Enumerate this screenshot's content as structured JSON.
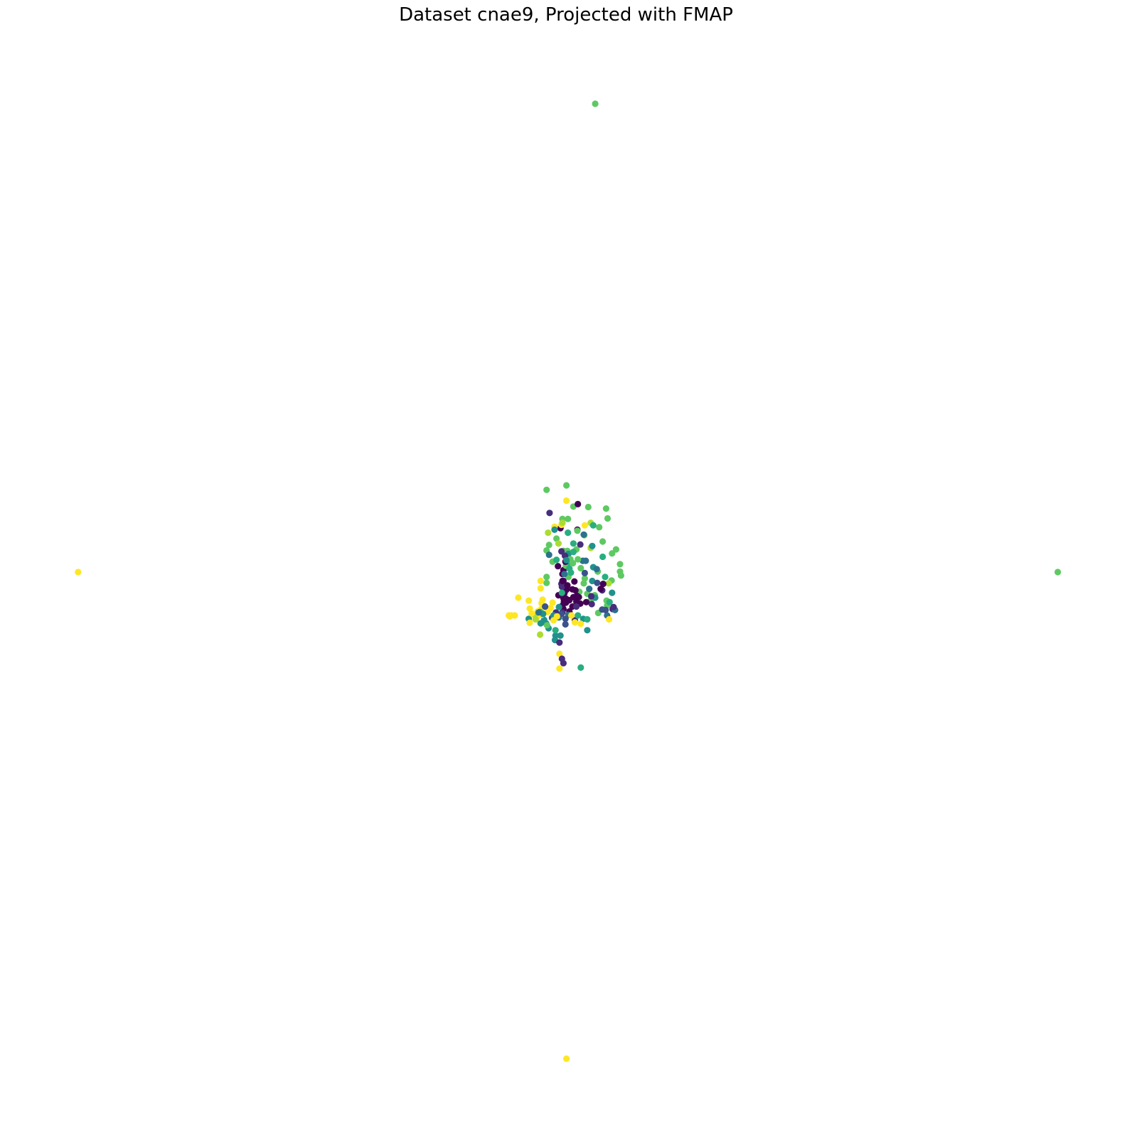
{
  "chart_data": {
    "type": "scatter",
    "title": "Dataset cnae9, Projected with FMAP",
    "xlabel": "",
    "ylabel": "",
    "axes_visible": false,
    "grid": false,
    "legend": "none",
    "xlim": [
      -1.0,
      1.0
    ],
    "ylim": [
      -1.0,
      1.0
    ],
    "colormap": "viridis",
    "class_colors": {
      "0": "#440154",
      "1": "#472d7b",
      "2": "#3b528b",
      "3": "#2c728e",
      "4": "#21918c",
      "5": "#28ae80",
      "6": "#5ec962",
      "7": "#addc30",
      "8": "#fde725"
    },
    "points": [
      {
        "x": 0.056,
        "y": 0.951,
        "c": 6
      },
      {
        "x": -0.986,
        "y": 0.0,
        "c": 8
      },
      {
        "x": 0.988,
        "y": 0.0,
        "c": 6
      },
      {
        "x": -0.002,
        "y": -0.988,
        "c": 8
      },
      {
        "x": -0.042,
        "y": 0.167,
        "c": 6
      },
      {
        "x": -0.002,
        "y": 0.176,
        "c": 6
      },
      {
        "x": 0.078,
        "y": 0.129,
        "c": 6
      },
      {
        "x": 0.081,
        "y": 0.109,
        "c": 6
      },
      {
        "x": 0.071,
        "y": 0.062,
        "c": 6
      },
      {
        "x": 0.09,
        "y": 0.038,
        "c": 6
      },
      {
        "x": 0.106,
        "y": 0.016,
        "c": 6
      },
      {
        "x": 0.106,
        "y": 0.001,
        "c": 6
      },
      {
        "x": 0.108,
        "y": -0.007,
        "c": 6
      },
      {
        "x": 0.089,
        "y": -0.017,
        "c": 6
      },
      {
        "x": 0.034,
        "y": 0.075,
        "c": 6
      },
      {
        "x": 0.018,
        "y": 0.046,
        "c": 6
      },
      {
        "x": -0.008,
        "y": 0.043,
        "c": 6
      },
      {
        "x": 0.0,
        "y": 0.043,
        "c": 6
      },
      {
        "x": -0.042,
        "y": 0.044,
        "c": 6
      },
      {
        "x": -0.042,
        "y": -0.01,
        "c": 6
      },
      {
        "x": -0.042,
        "y": -0.022,
        "c": 6
      },
      {
        "x": 0.002,
        "y": -0.01,
        "c": 6
      },
      {
        "x": 0.035,
        "y": -0.013,
        "c": 6
      },
      {
        "x": 0.033,
        "y": -0.023,
        "c": 6
      },
      {
        "x": 0.04,
        "y": -0.044,
        "c": 6
      },
      {
        "x": 0.024,
        "y": -0.04,
        "c": 6
      },
      {
        "x": 0.055,
        "y": -0.047,
        "c": 6
      },
      {
        "x": 0.047,
        "y": -0.057,
        "c": 6
      },
      {
        "x": 0.079,
        "y": -0.058,
        "c": 6
      },
      {
        "x": 0.062,
        "y": -0.083,
        "c": 6
      },
      {
        "x": 0.08,
        "y": -0.068,
        "c": 6
      },
      {
        "x": 0.085,
        "y": -0.061,
        "c": 5
      },
      {
        "x": 0.09,
        "y": -0.042,
        "c": 4
      },
      {
        "x": 0.044,
        "y": -0.034,
        "c": 3
      },
      {
        "x": 0.05,
        "y": -0.018,
        "c": 4
      },
      {
        "x": 0.031,
        "y": 0.023,
        "c": 3
      },
      {
        "x": 0.037,
        "y": 0.023,
        "c": 3
      },
      {
        "x": 0.035,
        "y": -0.002,
        "c": 2
      },
      {
        "x": 0.056,
        "y": -0.052,
        "c": 4
      },
      {
        "x": 0.032,
        "y": -0.095,
        "c": 4
      },
      {
        "x": 0.04,
        "y": -0.118,
        "c": 4
      },
      {
        "x": 0.08,
        "y": -0.088,
        "c": 3
      },
      {
        "x": 0.077,
        "y": -0.077,
        "c": 2
      },
      {
        "x": 0.091,
        "y": -0.075,
        "c": 1
      },
      {
        "x": 0.07,
        "y": -0.076,
        "c": 2
      },
      {
        "x": 0.049,
        "y": -0.065,
        "c": 1
      },
      {
        "x": 0.048,
        "y": -0.049,
        "c": 1
      },
      {
        "x": 0.023,
        "y": -0.051,
        "c": 0
      },
      {
        "x": 0.026,
        "y": -0.064,
        "c": 0
      },
      {
        "x": 0.018,
        "y": -0.06,
        "c": 0
      },
      {
        "x": 0.038,
        "y": -0.061,
        "c": 0
      },
      {
        "x": 0.01,
        "y": -0.07,
        "c": 0
      },
      {
        "x": -0.008,
        "y": -0.075,
        "c": 0
      },
      {
        "x": 0.004,
        "y": -0.08,
        "c": 0
      },
      {
        "x": -0.003,
        "y": -0.062,
        "c": 0
      },
      {
        "x": -0.008,
        "y": -0.053,
        "c": 0
      },
      {
        "x": -0.006,
        "y": -0.043,
        "c": 0
      },
      {
        "x": -0.002,
        "y": -0.036,
        "c": 0
      },
      {
        "x": -0.008,
        "y": -0.018,
        "c": 0
      },
      {
        "x": -0.01,
        "y": -0.004,
        "c": 0
      },
      {
        "x": -0.008,
        "y": 0.004,
        "c": 0
      },
      {
        "x": -0.007,
        "y": -0.06,
        "c": 0
      },
      {
        "x": -0.011,
        "y": -0.047,
        "c": 0
      },
      {
        "x": -0.01,
        "y": -0.068,
        "c": 0
      },
      {
        "x": 0.016,
        "y": -0.037,
        "c": 0
      },
      {
        "x": 0.019,
        "y": -0.048,
        "c": 0
      },
      {
        "x": 0.012,
        "y": -0.051,
        "c": 0
      },
      {
        "x": 0.004,
        "y": -0.057,
        "c": 0
      },
      {
        "x": -0.003,
        "y": -0.054,
        "c": 0
      },
      {
        "x": -0.018,
        "y": -0.047,
        "c": 0
      },
      {
        "x": 0.02,
        "y": 0.086,
        "c": 0
      },
      {
        "x": 0.014,
        "y": -0.019,
        "c": 0
      },
      {
        "x": -0.014,
        "y": 0.089,
        "c": 0
      },
      {
        "x": -0.012,
        "y": 0.042,
        "c": 1
      },
      {
        "x": -0.012,
        "y": -0.024,
        "c": 1
      },
      {
        "x": -0.023,
        "y": -0.082,
        "c": 1
      },
      {
        "x": 0.07,
        "y": -0.037,
        "c": 1
      },
      {
        "x": -0.031,
        "y": -0.093,
        "c": 2
      },
      {
        "x": -0.004,
        "y": -0.106,
        "c": 2
      },
      {
        "x": 0.015,
        "y": -0.098,
        "c": 1
      },
      {
        "x": -0.01,
        "y": -0.082,
        "c": 1
      },
      {
        "x": -0.017,
        "y": -0.092,
        "c": 3
      },
      {
        "x": 0.002,
        "y": -0.087,
        "c": 3
      },
      {
        "x": -0.017,
        "y": -0.071,
        "c": 4
      },
      {
        "x": -0.028,
        "y": -0.088,
        "c": 4
      },
      {
        "x": -0.047,
        "y": -0.097,
        "c": 4
      },
      {
        "x": -0.043,
        "y": -0.104,
        "c": 4
      },
      {
        "x": -0.054,
        "y": -0.104,
        "c": 4
      },
      {
        "x": -0.038,
        "y": -0.114,
        "c": 4
      },
      {
        "x": -0.024,
        "y": -0.129,
        "c": 4
      },
      {
        "x": -0.025,
        "y": -0.138,
        "c": 4
      },
      {
        "x": -0.014,
        "y": -0.129,
        "c": 4
      },
      {
        "x": -0.078,
        "y": -0.095,
        "c": 4
      },
      {
        "x": 0.04,
        "y": -0.096,
        "c": 5
      },
      {
        "x": 0.021,
        "y": -0.088,
        "c": 5
      },
      {
        "x": -0.024,
        "y": -0.118,
        "c": 5
      },
      {
        "x": 0.007,
        "y": -0.001,
        "c": 5
      },
      {
        "x": -0.003,
        "y": 0.013,
        "c": 6
      },
      {
        "x": -0.03,
        "y": 0.021,
        "c": 6
      },
      {
        "x": 0.012,
        "y": 0.058,
        "c": 5
      },
      {
        "x": -0.019,
        "y": 0.012,
        "c": 0
      },
      {
        "x": 0.002,
        "y": 0.037,
        "c": 4
      },
      {
        "x": -0.006,
        "y": -0.004,
        "c": 3
      },
      {
        "x": -0.011,
        "y": -0.03,
        "c": 1
      },
      {
        "x": -0.012,
        "y": -0.085,
        "c": 2
      },
      {
        "x": -0.011,
        "y": -0.042,
        "c": 5
      },
      {
        "x": 0.027,
        "y": 0.008,
        "c": 6
      },
      {
        "x": 0.052,
        "y": 0.01,
        "c": 4
      },
      {
        "x": 0.061,
        "y": 0.001,
        "c": 6
      },
      {
        "x": 0.076,
        "y": -0.01,
        "c": 5
      },
      {
        "x": 0.059,
        "y": 0.006,
        "c": 3
      },
      {
        "x": 0.06,
        "y": -0.022,
        "c": 2
      },
      {
        "x": 0.004,
        "y": 0.02,
        "c": 5
      },
      {
        "x": 0.006,
        "y": 0.026,
        "c": 6
      },
      {
        "x": 0.004,
        "y": 0.007,
        "c": 5
      },
      {
        "x": 0.011,
        "y": 0.018,
        "c": 6
      },
      {
        "x": 0.098,
        "y": 0.046,
        "c": 6
      },
      {
        "x": 0.064,
        "y": 0.091,
        "c": 6
      },
      {
        "x": 0.047,
        "y": 0.1,
        "c": 7
      },
      {
        "x": 0.083,
        "y": -0.023,
        "c": 7
      },
      {
        "x": 0.047,
        "y": 0.049,
        "c": 7
      },
      {
        "x": 0.02,
        "y": 0.084,
        "c": 6
      },
      {
        "x": 0.042,
        "y": 0.132,
        "c": 6
      },
      {
        "x": 0.012,
        "y": 0.133,
        "c": 6
      },
      {
        "x": -0.01,
        "y": 0.108,
        "c": 6
      },
      {
        "x": 0.001,
        "y": 0.108,
        "c": 6
      },
      {
        "x": -0.039,
        "y": 0.08,
        "c": 7
      },
      {
        "x": -0.026,
        "y": 0.092,
        "c": 8
      },
      {
        "x": 0.001,
        "y": 0.08,
        "c": 5
      },
      {
        "x": -0.022,
        "y": 0.068,
        "c": 6
      },
      {
        "x": -0.018,
        "y": 0.058,
        "c": 7
      },
      {
        "x": -0.002,
        "y": 0.145,
        "c": 8
      },
      {
        "x": 0.021,
        "y": 0.138,
        "c": 0
      },
      {
        "x": 0.021,
        "y": 0.026,
        "c": 6
      },
      {
        "x": 0.012,
        "y": 0.041,
        "c": 5
      },
      {
        "x": 0.035,
        "y": 0.095,
        "c": 8
      },
      {
        "x": -0.036,
        "y": 0.12,
        "c": 1
      },
      {
        "x": -0.012,
        "y": 0.096,
        "c": 8
      },
      {
        "x": -0.01,
        "y": 0.1,
        "c": 7
      },
      {
        "x": 0.033,
        "y": 0.076,
        "c": 3
      },
      {
        "x": 0.052,
        "y": 0.095,
        "c": 5
      },
      {
        "x": 0.05,
        "y": 0.053,
        "c": 4
      },
      {
        "x": 0.071,
        "y": 0.031,
        "c": 5
      },
      {
        "x": 0.026,
        "y": 0.056,
        "c": 1
      },
      {
        "x": -0.026,
        "y": 0.086,
        "c": 4
      },
      {
        "x": -0.004,
        "y": 0.021,
        "c": 0
      },
      {
        "x": -0.005,
        "y": 0.033,
        "c": 1
      },
      {
        "x": -0.002,
        "y": 0.024,
        "c": 4
      },
      {
        "x": -0.054,
        "y": -0.018,
        "c": 8
      },
      {
        "x": -0.054,
        "y": -0.033,
        "c": 8
      },
      {
        "x": -0.062,
        "y": -0.093,
        "c": 8
      },
      {
        "x": -0.066,
        "y": -0.087,
        "c": 7
      },
      {
        "x": -0.06,
        "y": -0.08,
        "c": 8
      },
      {
        "x": -0.03,
        "y": -0.062,
        "c": 8
      },
      {
        "x": -0.052,
        "y": -0.087,
        "c": 8
      },
      {
        "x": -0.052,
        "y": -0.063,
        "c": 8
      },
      {
        "x": -0.05,
        "y": -0.056,
        "c": 8
      },
      {
        "x": -0.04,
        "y": -0.081,
        "c": 8
      },
      {
        "x": -0.034,
        "y": -0.073,
        "c": 8
      },
      {
        "x": -0.028,
        "y": -0.098,
        "c": 8
      },
      {
        "x": -0.053,
        "y": -0.075,
        "c": 8
      },
      {
        "x": -0.099,
        "y": -0.052,
        "c": 8
      },
      {
        "x": -0.118,
        "y": -0.088,
        "c": 8
      },
      {
        "x": -0.116,
        "y": -0.09,
        "c": 8
      },
      {
        "x": -0.113,
        "y": -0.088,
        "c": 8
      },
      {
        "x": -0.106,
        "y": -0.088,
        "c": 8
      },
      {
        "x": -0.078,
        "y": -0.058,
        "c": 8
      },
      {
        "x": -0.076,
        "y": -0.074,
        "c": 8
      },
      {
        "x": -0.072,
        "y": -0.084,
        "c": 8
      },
      {
        "x": -0.076,
        "y": -0.103,
        "c": 8
      },
      {
        "x": -0.021,
        "y": -0.09,
        "c": 8
      },
      {
        "x": 0.008,
        "y": -0.088,
        "c": 8
      },
      {
        "x": 0.015,
        "y": -0.102,
        "c": 8
      },
      {
        "x": 0.027,
        "y": -0.105,
        "c": 8
      },
      {
        "x": 0.084,
        "y": -0.096,
        "c": 8
      },
      {
        "x": -0.016,
        "y": -0.166,
        "c": 8
      },
      {
        "x": -0.016,
        "y": -0.196,
        "c": 8
      },
      {
        "x": -0.008,
        "y": -0.185,
        "c": 1
      },
      {
        "x": -0.011,
        "y": -0.176,
        "c": 1
      },
      {
        "x": -0.016,
        "y": -0.143,
        "c": 1
      },
      {
        "x": 0.027,
        "y": -0.194,
        "c": 5
      },
      {
        "x": -0.055,
        "y": -0.081,
        "c": 5
      },
      {
        "x": -0.049,
        "y": -0.085,
        "c": 4
      },
      {
        "x": -0.045,
        "y": -0.07,
        "c": 2
      },
      {
        "x": -0.058,
        "y": -0.082,
        "c": 3
      },
      {
        "x": -0.064,
        "y": -0.096,
        "c": 7
      },
      {
        "x": -0.041,
        "y": -0.108,
        "c": 6
      },
      {
        "x": -0.055,
        "y": -0.127,
        "c": 7
      },
      {
        "x": -0.037,
        "y": 0.055,
        "c": 6
      },
      {
        "x": -0.037,
        "y": 0.035,
        "c": 3
      },
      {
        "x": -0.022,
        "y": 0.025,
        "c": 5
      },
      {
        "x": 0.096,
        "y": -0.077,
        "c": 3
      },
      {
        "x": 0.093,
        "y": -0.071,
        "c": 1
      },
      {
        "x": 0.072,
        "y": -0.024,
        "c": 0
      },
      {
        "x": 0.067,
        "y": -0.034,
        "c": 0
      },
      {
        "x": 0.018,
        "y": -0.07,
        "c": 1
      },
      {
        "x": -0.01,
        "y": -0.018,
        "c": 0
      },
      {
        "x": 0.0,
        "y": -0.027,
        "c": 0
      },
      {
        "x": 0.01,
        "y": -0.035,
        "c": 0
      },
      {
        "x": -0.004,
        "y": -0.095,
        "c": 2
      }
    ]
  }
}
